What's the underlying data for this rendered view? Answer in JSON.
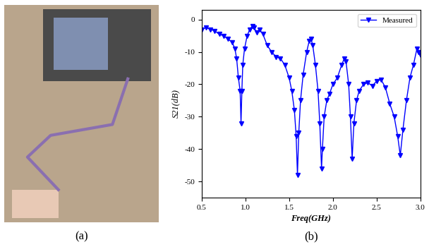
{
  "chart_data": {
    "type": "line",
    "xlabel": "Freq(GHz)",
    "ylabel": "S21(dB)",
    "x": [
      0.5,
      0.55,
      0.6,
      0.65,
      0.7,
      0.75,
      0.8,
      0.85,
      0.88,
      0.9,
      0.92,
      0.94,
      0.95,
      0.96,
      0.97,
      0.99,
      1.02,
      1.05,
      1.08,
      1.1,
      1.13,
      1.16,
      1.2,
      1.25,
      1.3,
      1.35,
      1.4,
      1.45,
      1.5,
      1.53,
      1.56,
      1.58,
      1.595,
      1.61,
      1.63,
      1.66,
      1.7,
      1.73,
      1.75,
      1.77,
      1.8,
      1.83,
      1.85,
      1.87,
      1.88,
      1.9,
      1.93,
      1.96,
      2.0,
      2.05,
      2.1,
      2.13,
      2.15,
      2.18,
      2.2,
      2.22,
      2.24,
      2.27,
      2.3,
      2.35,
      2.4,
      2.45,
      2.5,
      2.55,
      2.6,
      2.65,
      2.7,
      2.74,
      2.77,
      2.8,
      2.84,
      2.88,
      2.92,
      2.96,
      2.98,
      3.0
    ],
    "series": [
      {
        "name": "Measured",
        "color": "#0000ff",
        "marker": "triangle_down",
        "line_style": "solid",
        "values": [
          -3,
          -2.5,
          -3,
          -3.5,
          -4.5,
          -5,
          -6,
          -7,
          -9,
          -12,
          -18,
          -22,
          -32,
          -22,
          -14,
          -9,
          -5,
          -3,
          -2,
          -2.5,
          -4,
          -3,
          -4.5,
          -8,
          -10,
          -11.5,
          -12,
          -14,
          -18,
          -22,
          -28,
          -36,
          -48,
          -35,
          -25,
          -17,
          -10,
          -6.5,
          -6,
          -8,
          -14,
          -22,
          -32,
          -46,
          -40,
          -30,
          -25,
          -23,
          -20,
          -18,
          -14,
          -12,
          -13,
          -20,
          -30,
          -43,
          -32,
          -25,
          -22,
          -20,
          -19.5,
          -20.5,
          -19,
          -18.5,
          -21,
          -26,
          -30,
          -36,
          -42,
          -34,
          -25,
          -18,
          -14,
          -9,
          -10,
          -11
        ]
      }
    ],
    "xlim": [
      0.5,
      3.0
    ],
    "xticks": [
      0.5,
      1.0,
      1.5,
      2.0,
      2.5,
      3.0
    ],
    "ylim": [
      -55,
      3
    ],
    "yticks": [
      -50,
      -40,
      -30,
      -20,
      -10,
      0
    ],
    "legend": "upper right",
    "grid": false
  },
  "panel_labels": [
    "(a)",
    "(b)"
  ]
}
